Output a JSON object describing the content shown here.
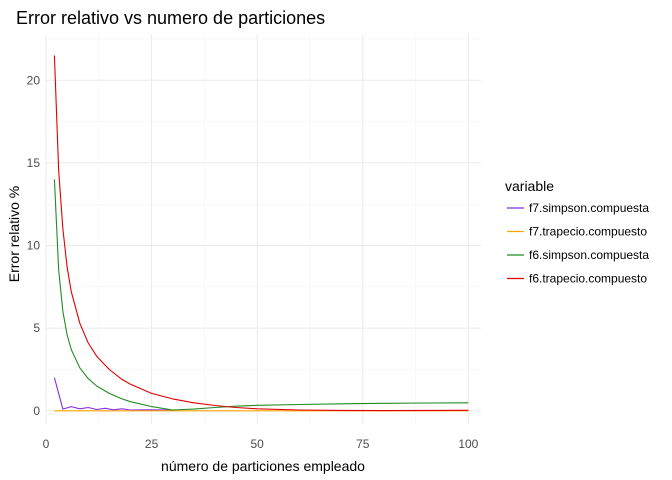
{
  "chart_data": {
    "type": "line",
    "title": "Error relativo vs numero de particiones",
    "xlabel": "número de particiones empleado",
    "ylabel": "Error relativo %",
    "xlim": [
      0,
      103
    ],
    "ylim": [
      -0.8,
      22.8
    ],
    "xticks": [
      0,
      25,
      50,
      75,
      100
    ],
    "yticks": [
      0,
      5,
      10,
      15,
      20
    ],
    "grid": true,
    "legend": {
      "title": "variable",
      "position": "right"
    },
    "series": [
      {
        "name": "f7.simpson.compuesta",
        "color": "#8a2be2",
        "x": [
          2,
          4,
          6,
          8,
          10,
          12,
          14,
          16,
          18,
          20,
          24,
          30
        ],
        "y": [
          2.0,
          0.1,
          0.25,
          0.12,
          0.2,
          0.08,
          0.15,
          0.06,
          0.12,
          0.05,
          0.06,
          0.04
        ]
      },
      {
        "name": "f7.trapecio.compuesto",
        "color": "#ffa500",
        "x": [
          2,
          100
        ],
        "y": [
          0.0,
          0.0
        ]
      },
      {
        "name": "f6.simpson.compuesta",
        "color": "#228b22",
        "x": [
          2,
          3,
          4,
          5,
          6,
          8,
          10,
          12,
          15,
          18,
          20,
          25,
          30,
          35,
          40,
          45,
          50,
          60,
          70,
          80,
          90,
          100
        ],
        "y": [
          14.0,
          8.5,
          6.0,
          4.6,
          3.7,
          2.6,
          1.95,
          1.5,
          1.05,
          0.72,
          0.55,
          0.25,
          0.05,
          0.1,
          0.2,
          0.28,
          0.33,
          0.38,
          0.42,
          0.45,
          0.47,
          0.48
        ]
      },
      {
        "name": "f6.trapecio.compuesto",
        "color": "#e00000",
        "x": [
          2,
          3,
          4,
          5,
          6,
          8,
          10,
          12,
          15,
          18,
          20,
          25,
          30,
          35,
          40,
          45,
          50,
          60,
          70,
          80,
          90,
          100
        ],
        "y": [
          21.5,
          14.5,
          11.0,
          8.7,
          7.2,
          5.3,
          4.1,
          3.3,
          2.5,
          1.9,
          1.6,
          1.05,
          0.72,
          0.48,
          0.32,
          0.2,
          0.12,
          0.05,
          0.02,
          0.01,
          0.02,
          0.03
        ]
      }
    ]
  }
}
